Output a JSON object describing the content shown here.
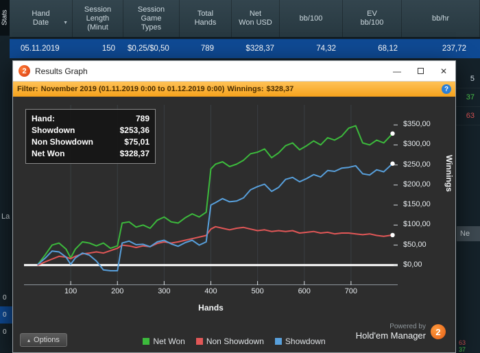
{
  "table": {
    "stats_tab": "Stats",
    "sort_arrow": "▼",
    "columns": [
      {
        "label": "Hand\nDate"
      },
      {
        "label": "Session\nLength\n(Minut"
      },
      {
        "label": "Session\nGame\nTypes"
      },
      {
        "label": "Total\nHands"
      },
      {
        "label": "Net\nWon USD"
      },
      {
        "label": "bb/100"
      },
      {
        "label": "EV\nbb/100"
      },
      {
        "label": "bb/hr"
      }
    ],
    "row": {
      "cells": [
        "05.11.2019",
        "150",
        "$0,25/$0,50",
        "789",
        "$328,37",
        "74,32",
        "68,12",
        "237,72"
      ]
    }
  },
  "window": {
    "title": "Results Graph",
    "badge": "2",
    "minimize": "—",
    "close": "✕"
  },
  "filter_bar": {
    "label": "Filter:",
    "range": "November 2019 (01.11.2019 0:00 to 01.12.2019 0:00)",
    "winnings_label": "Winnings:",
    "winnings_value": "$328,37",
    "help": "?"
  },
  "tooltip": {
    "rows": [
      {
        "label": "Hand:",
        "value": "789"
      },
      {
        "label": "Showdown",
        "value": "$253,36"
      },
      {
        "label": "Non Showdown",
        "value": "$75,01"
      },
      {
        "label": "Net Won",
        "value": "$328,37"
      }
    ]
  },
  "chart_data": {
    "type": "line",
    "title": "Results Graph",
    "xlabel": "Hands",
    "ylabel": "Winnings",
    "xlim": [
      0,
      800
    ],
    "ylim": [
      -50,
      400
    ],
    "x_ticks": [
      100,
      200,
      300,
      400,
      500,
      600,
      700
    ],
    "y_ticks": [
      0,
      50,
      100,
      150,
      200,
      250,
      300,
      350
    ],
    "y_tick_labels": [
      "$0,00",
      "$50,00",
      "$100,00",
      "$150,00",
      "$200,00",
      "$250,00",
      "$300,00",
      "$350,00"
    ],
    "grid": "vertical-only",
    "zero_line": 0,
    "legend_position": "bottom",
    "x": [
      30,
      45,
      60,
      75,
      90,
      100,
      110,
      125,
      140,
      155,
      170,
      185,
      200,
      210,
      225,
      240,
      255,
      270,
      285,
      300,
      315,
      330,
      345,
      360,
      375,
      390,
      400,
      410,
      425,
      440,
      455,
      470,
      485,
      500,
      515,
      530,
      545,
      560,
      575,
      590,
      605,
      620,
      635,
      650,
      665,
      680,
      695,
      710,
      725,
      740,
      755,
      770,
      789
    ],
    "series": [
      {
        "name": "Net Won",
        "color": "#3cba3c",
        "values": [
          2,
          25,
          50,
          55,
          40,
          18,
          40,
          58,
          55,
          48,
          55,
          42,
          48,
          105,
          108,
          95,
          100,
          92,
          112,
          120,
          108,
          105,
          118,
          128,
          120,
          132,
          240,
          252,
          258,
          246,
          252,
          262,
          278,
          282,
          290,
          268,
          280,
          298,
          305,
          288,
          298,
          310,
          300,
          318,
          312,
          322,
          342,
          348,
          305,
          300,
          312,
          305,
          328.37
        ]
      },
      {
        "name": "Non Showdown",
        "color": "#e25757",
        "values": [
          0,
          8,
          15,
          22,
          20,
          16,
          22,
          28,
          30,
          33,
          30,
          36,
          42,
          50,
          48,
          44,
          48,
          46,
          54,
          58,
          55,
          58,
          62,
          66,
          70,
          74,
          90,
          96,
          92,
          88,
          92,
          94,
          90,
          86,
          88,
          84,
          86,
          84,
          86,
          80,
          82,
          84,
          80,
          82,
          78,
          80,
          80,
          78,
          76,
          78,
          74,
          72,
          75.01
        ]
      },
      {
        "name": "Showdown",
        "color": "#58a0dc",
        "values": [
          2,
          17,
          35,
          33,
          20,
          2,
          18,
          30,
          25,
          10,
          -12,
          -14,
          -14,
          55,
          60,
          51,
          52,
          46,
          58,
          62,
          53,
          47,
          56,
          62,
          50,
          58,
          150,
          156,
          166,
          158,
          160,
          168,
          188,
          196,
          202,
          184,
          194,
          214,
          219,
          208,
          216,
          226,
          220,
          236,
          234,
          242,
          244,
          248,
          228,
          225,
          238,
          233,
          253.36
        ]
      }
    ]
  },
  "legend": [
    {
      "label": "Net Won",
      "color": "#3cba3c"
    },
    {
      "label": "Non Showdown",
      "color": "#e25757"
    },
    {
      "label": "Showdown",
      "color": "#58a0dc"
    }
  ],
  "powered_by": {
    "line1": "Powered by",
    "line2": "Hold'em Manager",
    "badge": "2"
  },
  "options": {
    "label": "Options",
    "icon": "▴"
  },
  "background_edges": {
    "left_partial_text": "La",
    "left_rows": [
      "0",
      "0",
      "0"
    ],
    "right_rows": [
      {
        "text": "5",
        "color": "#d8e4ec"
      },
      {
        "text": "37",
        "color": "#4fd04f"
      },
      {
        "text": "63",
        "color": "#e25757"
      }
    ],
    "right_partial_button": "Ne",
    "bottom_right_rows": [
      {
        "text": "63",
        "color": "#e25757"
      },
      {
        "text": "37",
        "color": "#4fd04f"
      }
    ]
  }
}
